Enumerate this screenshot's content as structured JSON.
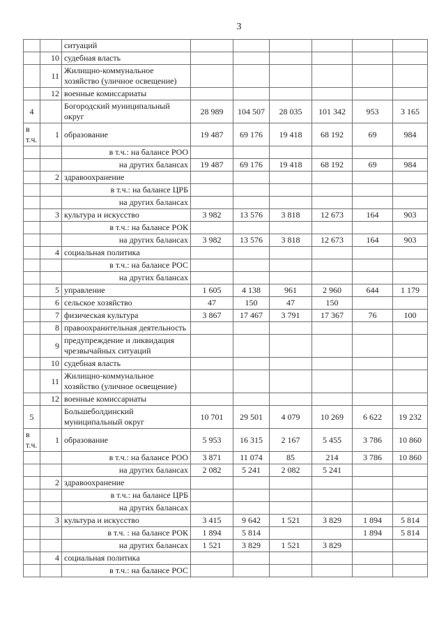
{
  "page": {
    "number": "3"
  },
  "table": {
    "value_columns": 6,
    "rows": [
      {
        "c1": "",
        "c2": "",
        "label": "ситуаций",
        "right": false
      },
      {
        "c1": "",
        "c2": "10",
        "label": "судебная власть",
        "right": false
      },
      {
        "c1": "",
        "c2": "11",
        "label": "Жилищно-коммунальное хозяйство (уличное освещение)",
        "right": false
      },
      {
        "c1": "",
        "c2": "12",
        "label": "военные комиссариаты",
        "right": false
      },
      {
        "c1": "4",
        "c2": "",
        "label": "Богородский муниципальный округ",
        "right": false,
        "values": [
          "28 989",
          "104 507",
          "28 035",
          "101 342",
          "953",
          "3 165"
        ]
      },
      {
        "c1": "в т.ч.",
        "c2": "1",
        "label": "образование",
        "right": false,
        "values": [
          "19 487",
          "69 176",
          "19 418",
          "68 192",
          "69",
          "984"
        ]
      },
      {
        "c1": "",
        "c2": "",
        "label": "в т.ч.: на балансе РОО",
        "right": true
      },
      {
        "c1": "",
        "c2": "",
        "label": "на других балансах",
        "right": true,
        "values": [
          "19 487",
          "69 176",
          "19 418",
          "68 192",
          "69",
          "984"
        ]
      },
      {
        "c1": "",
        "c2": "2",
        "label": "здравоохранение",
        "right": false
      },
      {
        "c1": "",
        "c2": "",
        "label": "в т.ч.: на балансе ЦРБ",
        "right": true
      },
      {
        "c1": "",
        "c2": "",
        "label": "на других балансах",
        "right": true
      },
      {
        "c1": "",
        "c2": "3",
        "label": "культура и искусство",
        "right": false,
        "values": [
          "3 982",
          "13 576",
          "3 818",
          "12 673",
          "164",
          "903"
        ]
      },
      {
        "c1": "",
        "c2": "",
        "label": "в т.ч.: на балансе РОК",
        "right": true
      },
      {
        "c1": "",
        "c2": "",
        "label": "на других балансах",
        "right": true,
        "values": [
          "3 982",
          "13 576",
          "3 818",
          "12 673",
          "164",
          "903"
        ]
      },
      {
        "c1": "",
        "c2": "4",
        "label": "социальная политика",
        "right": false
      },
      {
        "c1": "",
        "c2": "",
        "label": "в т.ч.: на балансе РОС",
        "right": true
      },
      {
        "c1": "",
        "c2": "",
        "label": "на других балансах",
        "right": true
      },
      {
        "c1": "",
        "c2": "5",
        "label": "управление",
        "right": false,
        "values": [
          "1 605",
          "4 138",
          "961",
          "2 960",
          "644",
          "1 179"
        ]
      },
      {
        "c1": "",
        "c2": "6",
        "label": "сельское хозяйство",
        "right": false,
        "values": [
          "47",
          "150",
          "47",
          "150",
          "",
          ""
        ]
      },
      {
        "c1": "",
        "c2": "7",
        "label": "физическая культура",
        "right": false,
        "values": [
          "3 867",
          "17 467",
          "3 791",
          "17 367",
          "76",
          "100"
        ]
      },
      {
        "c1": "",
        "c2": "8",
        "label": "правоохранительная деятельность",
        "right": false
      },
      {
        "c1": "",
        "c2": "9",
        "label": "предупреждение и ликвидация чрезвычайных ситуаций",
        "right": false
      },
      {
        "c1": "",
        "c2": "10",
        "label": "судебная власть",
        "right": false
      },
      {
        "c1": "",
        "c2": "11",
        "label": "Жилищно-коммунальное хозяйство (уличное освещение)",
        "right": false
      },
      {
        "c1": "",
        "c2": "12",
        "label": "военные комиссариаты",
        "right": false
      },
      {
        "c1": "5",
        "c2": "",
        "label": "Большеболдинский муниципальный округ",
        "right": false,
        "values": [
          "10 701",
          "29 501",
          "4 079",
          "10 269",
          "6 622",
          "19 232"
        ]
      },
      {
        "c1": "в т.ч.",
        "c2": "1",
        "label": "образование",
        "right": false,
        "values": [
          "5 953",
          "16 315",
          "2 167",
          "5 455",
          "3 786",
          "10 860"
        ]
      },
      {
        "c1": "",
        "c2": "",
        "label": "в т.ч.: на балансе РОО",
        "right": true,
        "values": [
          "3 871",
          "11 074",
          "85",
          "214",
          "3 786",
          "10 860"
        ]
      },
      {
        "c1": "",
        "c2": "",
        "label": "на других балансах",
        "right": true,
        "values": [
          "2 082",
          "5 241",
          "2 082",
          "5 241",
          "",
          ""
        ]
      },
      {
        "c1": "",
        "c2": "2",
        "label": "здравоохранение",
        "right": false
      },
      {
        "c1": "",
        "c2": "",
        "label": "в т.ч.: на балансе ЦРБ",
        "right": true
      },
      {
        "c1": "",
        "c2": "",
        "label": "на других балансах",
        "right": true
      },
      {
        "c1": "",
        "c2": "3",
        "label": "культура и искусство",
        "right": false,
        "values": [
          "3 415",
          "9 642",
          "1 521",
          "3 829",
          "1 894",
          "5 814"
        ]
      },
      {
        "c1": "",
        "c2": "",
        "label": "в т.ч. : на балансе РОК",
        "right": true,
        "values": [
          "1 894",
          "5 814",
          "",
          "",
          "1 894",
          "5 814"
        ]
      },
      {
        "c1": "",
        "c2": "",
        "label": "на других балансах",
        "right": true,
        "values": [
          "1 521",
          "3 829",
          "1 521",
          "3 829",
          "",
          ""
        ]
      },
      {
        "c1": "",
        "c2": "4",
        "label": "социальная политика",
        "right": false
      },
      {
        "c1": "",
        "c2": "",
        "label": "в т.ч.: на балансе РОС",
        "right": true
      }
    ]
  }
}
